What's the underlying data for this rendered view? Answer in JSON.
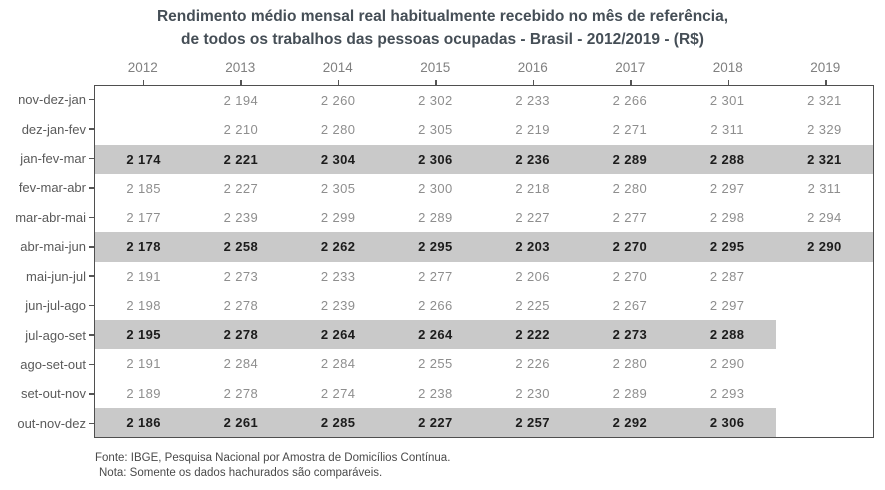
{
  "title": {
    "line1": "Rendimento médio mensal real habitualmente recebido no mês de referência,",
    "line2": "de todos os trabalhos das pessoas ocupadas - Brasil - 2012/2019 - (R$)"
  },
  "footer": {
    "fonte": "Fonte: IBGE, Pesquisa Nacional por Amostra de Domicílios Contínua.",
    "nota": "Nota: Somente os dados hachurados são comparáveis."
  },
  "style": {
    "band_color": "#c9c9c9",
    "border_color": "#4f4f4f",
    "title_color": "#454e56",
    "normal_value_color": "#8e8e8e",
    "highlight_value_color": "#1c1c1c",
    "year_label_color": "#808080",
    "row_label_color": "#5a5a5a"
  },
  "chart_data": {
    "type": "table",
    "title": "Rendimento médio mensal real habitualmente recebido no mês de referência, de todos os trabalhos das pessoas ocupadas - Brasil - 2012/2019 - (R$)",
    "xlabel": "",
    "ylabel": "",
    "legend": "none",
    "grid": false,
    "value_format": "space thousands separator",
    "highlight_meaning": "hachured (gray) rows are comparable calendar quarters",
    "columns": [
      "2012",
      "2013",
      "2014",
      "2015",
      "2016",
      "2017",
      "2018",
      "2019"
    ],
    "rows": [
      {
        "label": "nov-dez-jan",
        "highlighted": false,
        "band_columns": 0,
        "values": [
          null,
          2194,
          2260,
          2302,
          2233,
          2266,
          2301,
          2321
        ]
      },
      {
        "label": "dez-jan-fev",
        "highlighted": false,
        "band_columns": 0,
        "values": [
          null,
          2210,
          2280,
          2305,
          2219,
          2271,
          2311,
          2329
        ]
      },
      {
        "label": "jan-fev-mar",
        "highlighted": true,
        "band_columns": 8,
        "values": [
          2174,
          2221,
          2304,
          2306,
          2236,
          2289,
          2288,
          2321
        ]
      },
      {
        "label": "fev-mar-abr",
        "highlighted": false,
        "band_columns": 0,
        "values": [
          2185,
          2227,
          2305,
          2300,
          2218,
          2280,
          2297,
          2311
        ]
      },
      {
        "label": "mar-abr-mai",
        "highlighted": false,
        "band_columns": 0,
        "values": [
          2177,
          2239,
          2299,
          2289,
          2227,
          2277,
          2298,
          2294
        ]
      },
      {
        "label": "abr-mai-jun",
        "highlighted": true,
        "band_columns": 8,
        "values": [
          2178,
          2258,
          2262,
          2295,
          2203,
          2270,
          2295,
          2290
        ]
      },
      {
        "label": "mai-jun-jul",
        "highlighted": false,
        "band_columns": 0,
        "values": [
          2191,
          2273,
          2233,
          2277,
          2206,
          2270,
          2287,
          null
        ]
      },
      {
        "label": "jun-jul-ago",
        "highlighted": false,
        "band_columns": 0,
        "values": [
          2198,
          2278,
          2239,
          2266,
          2225,
          2267,
          2297,
          null
        ]
      },
      {
        "label": "jul-ago-set",
        "highlighted": true,
        "band_columns": 7,
        "values": [
          2195,
          2278,
          2264,
          2264,
          2222,
          2273,
          2288,
          null
        ]
      },
      {
        "label": "ago-set-out",
        "highlighted": false,
        "band_columns": 0,
        "values": [
          2191,
          2284,
          2284,
          2255,
          2226,
          2280,
          2290,
          null
        ]
      },
      {
        "label": "set-out-nov",
        "highlighted": false,
        "band_columns": 0,
        "values": [
          2189,
          2278,
          2274,
          2238,
          2230,
          2289,
          2293,
          null
        ]
      },
      {
        "label": "out-nov-dez",
        "highlighted": true,
        "band_columns": 7,
        "values": [
          2186,
          2261,
          2285,
          2227,
          2257,
          2292,
          2306,
          null
        ]
      }
    ]
  }
}
